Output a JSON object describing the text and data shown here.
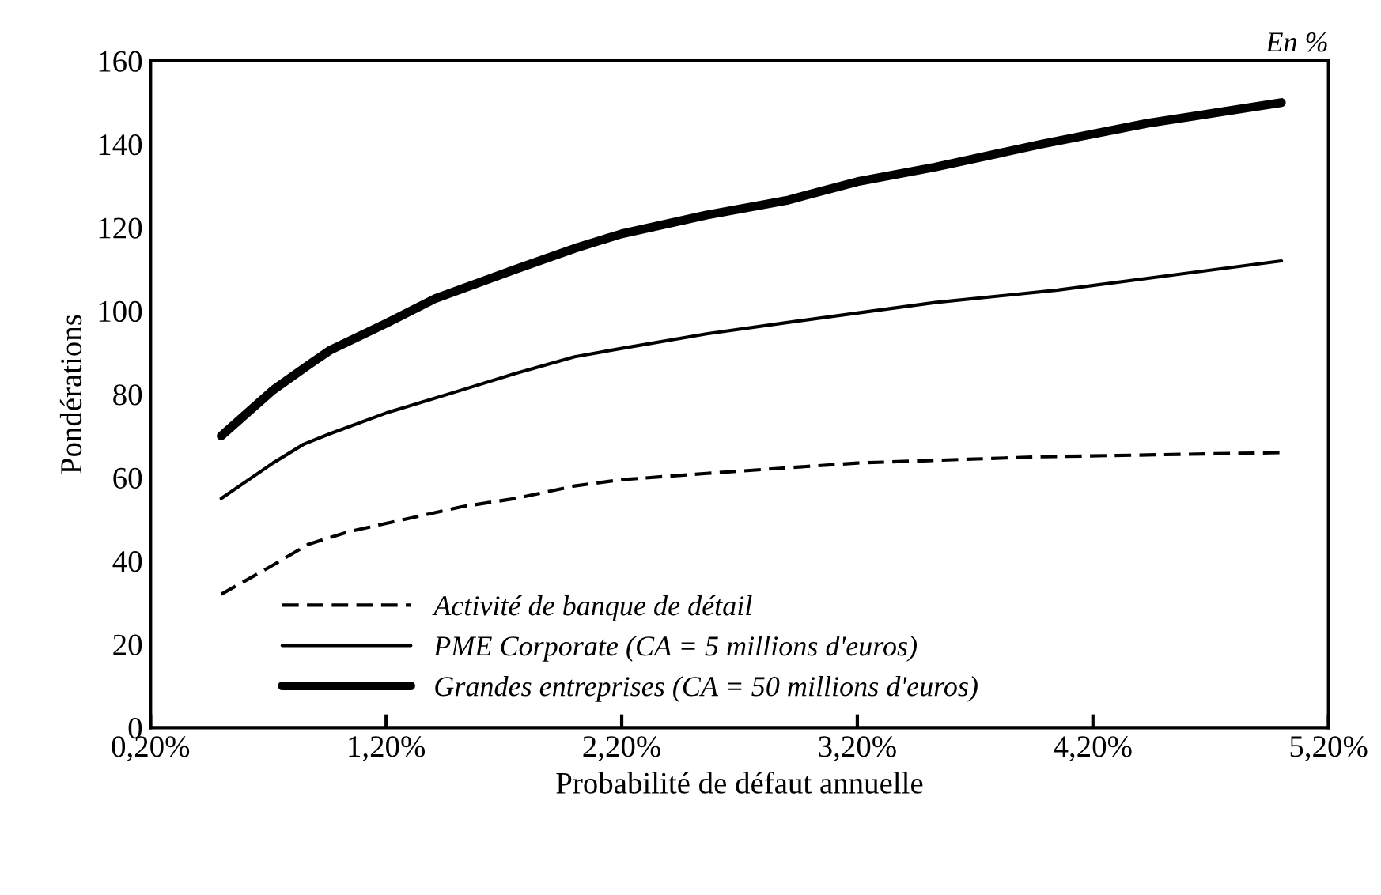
{
  "chart_data": {
    "type": "line",
    "xlabel": "Probabilité de défaut annuelle",
    "ylabel": "Pondérations",
    "annotations": [
      "En %"
    ],
    "xlim": [
      0.2,
      5.2
    ],
    "ylim": [
      0,
      160
    ],
    "xticks": [
      {
        "value": 0.2,
        "label": "0,20%"
      },
      {
        "value": 1.2,
        "label": "1,20%"
      },
      {
        "value": 2.2,
        "label": "2,20%"
      },
      {
        "value": 3.2,
        "label": "3,20%"
      },
      {
        "value": 4.2,
        "label": "4,20%"
      },
      {
        "value": 5.2,
        "label": "5,20%"
      }
    ],
    "yticks": [
      0,
      20,
      40,
      60,
      80,
      100,
      120,
      140,
      160
    ],
    "grid": false,
    "legend": "bottom left",
    "marker": "none",
    "series": [
      {
        "name": "Activité de banque de détail",
        "color": "#000000",
        "line_style": "dashed",
        "x": [
          0.5,
          0.72,
          0.87,
          1.04,
          1.2,
          1.52,
          1.75,
          2.0,
          2.2,
          2.56,
          2.94,
          3.2,
          3.98,
          5.0
        ],
        "values": [
          32,
          39,
          44,
          47,
          49,
          53,
          55,
          58,
          59.5,
          61,
          62.5,
          63.5,
          65,
          66
        ]
      },
      {
        "name": "PME Corporate (CA = 5 millions d'euros)",
        "color": "#000000",
        "line_style": "solid",
        "x": [
          0.5,
          0.72,
          0.85,
          0.96,
          1.2,
          1.52,
          1.75,
          2.0,
          2.2,
          2.56,
          2.94,
          3.2,
          3.53,
          4.05,
          5.0
        ],
        "values": [
          55,
          63.5,
          68,
          70.5,
          75.5,
          81,
          85,
          89,
          91,
          94.5,
          97.5,
          99.5,
          102,
          105,
          112
        ]
      },
      {
        "name": "Grandes entreprises (CA = 50 millions d'euros)",
        "color": "#000000",
        "line_style": "solid",
        "x": [
          0.5,
          0.72,
          0.87,
          0.96,
          1.2,
          1.41,
          1.75,
          2.0,
          2.2,
          2.56,
          2.9,
          3.2,
          3.53,
          3.98,
          4.43,
          5.0
        ],
        "values": [
          70,
          81,
          87,
          90.5,
          97,
          103,
          110,
          115,
          118.5,
          123,
          126.5,
          131,
          134.5,
          140,
          145,
          150
        ]
      }
    ]
  }
}
